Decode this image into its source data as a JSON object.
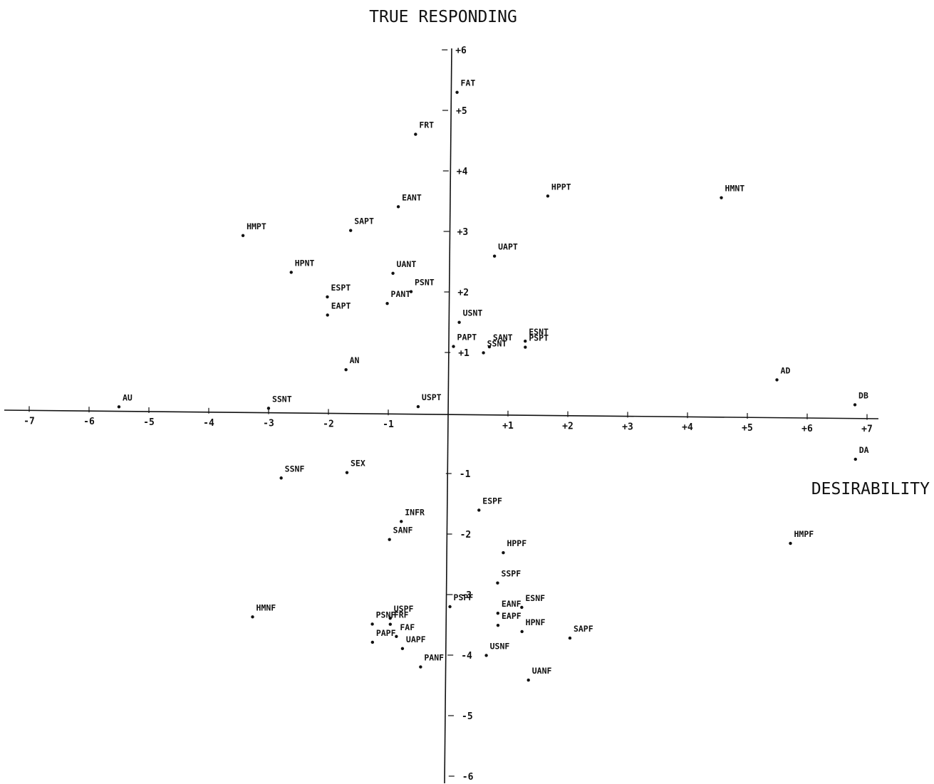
{
  "chart_data": {
    "type": "scatter",
    "title": "TRUE RESPONDING",
    "xlabel": "DESIRABILITY",
    "ylabel": "TRUE RESPONDING",
    "xlim": [
      -7.3,
      7.2
    ],
    "ylim": [
      -6.3,
      6.1
    ],
    "grid": false,
    "legend": "none",
    "x_ticks": [
      {
        "value": -7,
        "label": "-7"
      },
      {
        "value": -6,
        "label": "-6"
      },
      {
        "value": -5,
        "label": "-5"
      },
      {
        "value": -4,
        "label": "-4"
      },
      {
        "value": -3,
        "label": "-3"
      },
      {
        "value": -2,
        "label": "-2"
      },
      {
        "value": -1,
        "label": "-1"
      },
      {
        "value": 1,
        "label": "+1"
      },
      {
        "value": 2,
        "label": "+2"
      },
      {
        "value": 3,
        "label": "+3"
      },
      {
        "value": 4,
        "label": "+4"
      },
      {
        "value": 5,
        "label": "+5"
      },
      {
        "value": 6,
        "label": "+6"
      },
      {
        "value": 7,
        "label": "+7"
      }
    ],
    "y_ticks": [
      {
        "value": 6,
        "label": "+6"
      },
      {
        "value": 5,
        "label": "+5"
      },
      {
        "value": 4,
        "label": "+4"
      },
      {
        "value": 3,
        "label": "+3"
      },
      {
        "value": 2,
        "label": "+2"
      },
      {
        "value": 1,
        "label": "+1"
      },
      {
        "value": -1,
        "label": "-1"
      },
      {
        "value": -2,
        "label": "-2"
      },
      {
        "value": -3,
        "label": "-3"
      },
      {
        "value": -4,
        "label": "-4"
      },
      {
        "value": -5,
        "label": "-5"
      },
      {
        "value": -6,
        "label": "-6"
      }
    ],
    "points": [
      {
        "label": "FAT",
        "x": 0.2,
        "y": 5.3
      },
      {
        "label": "FRT",
        "x": -0.5,
        "y": 4.6
      },
      {
        "label": "HPPT",
        "x": 1.7,
        "y": 3.6
      },
      {
        "label": "HMNT",
        "x": 4.6,
        "y": 3.6
      },
      {
        "label": "EANT",
        "x": -0.8,
        "y": 3.4
      },
      {
        "label": "SAPT",
        "x": -1.6,
        "y": 3.0
      },
      {
        "label": "HMPT",
        "x": -3.4,
        "y": 2.9
      },
      {
        "label": "UAPT",
        "x": 0.8,
        "y": 2.6
      },
      {
        "label": "HPNT",
        "x": -2.6,
        "y": 2.3
      },
      {
        "label": "UANT",
        "x": -0.9,
        "y": 2.3
      },
      {
        "label": "PSNT",
        "x": -0.6,
        "y": 2.0
      },
      {
        "label": "ESPT",
        "x": -2.0,
        "y": 1.9
      },
      {
        "label": "PANT",
        "x": -1.0,
        "y": 1.8
      },
      {
        "label": "EAPT",
        "x": -2.0,
        "y": 1.6
      },
      {
        "label": "USNT",
        "x": 0.2,
        "y": 1.5
      },
      {
        "label": "ESNT",
        "x": 1.3,
        "y": 1.2
      },
      {
        "label": "PAPT",
        "x": 0.1,
        "y": 1.1
      },
      {
        "label": "SANT",
        "x": 0.7,
        "y": 1.1
      },
      {
        "label": "PSPT",
        "x": 1.3,
        "y": 1.1
      },
      {
        "label": "SSNT",
        "x": 0.6,
        "y": 1.0
      },
      {
        "label": "AN",
        "x": -1.7,
        "y": 0.7
      },
      {
        "label": "AD",
        "x": 5.5,
        "y": 0.6
      },
      {
        "label": "DB",
        "x": 6.8,
        "y": 0.2
      },
      {
        "label": "USPT",
        "x": -0.5,
        "y": 0.1
      },
      {
        "label": "AU",
        "x": -5.5,
        "y": 0.05
      },
      {
        "label": "SSNT",
        "x": -3.0,
        "y": 0.05
      },
      {
        "label": "DA",
        "x": 6.8,
        "y": -0.7
      },
      {
        "label": "SEX",
        "x": -1.7,
        "y": -1.0
      },
      {
        "label": "SSNF",
        "x": -2.8,
        "y": -1.1
      },
      {
        "label": "ESPF",
        "x": 0.5,
        "y": -1.6
      },
      {
        "label": "INFR",
        "x": -0.8,
        "y": -1.8
      },
      {
        "label": "SANF",
        "x": -1.0,
        "y": -2.1
      },
      {
        "label": "HMPF",
        "x": 5.7,
        "y": -2.1
      },
      {
        "label": "HPPF",
        "x": 0.9,
        "y": -2.3
      },
      {
        "label": "SSPF",
        "x": 0.8,
        "y": -2.8
      },
      {
        "label": "PSPF",
        "x": 0.0,
        "y": -3.2
      },
      {
        "label": "ESNF",
        "x": 1.2,
        "y": -3.2
      },
      {
        "label": "EANF",
        "x": 0.8,
        "y": -3.3
      },
      {
        "label": "HMNF",
        "x": -3.3,
        "y": -3.4
      },
      {
        "label": "USPF",
        "x": -1.0,
        "y": -3.4
      },
      {
        "label": "PSNF",
        "x": -1.3,
        "y": -3.5
      },
      {
        "label": "FRF",
        "x": -1.0,
        "y": -3.5
      },
      {
        "label": "EAPF",
        "x": 0.8,
        "y": -3.5
      },
      {
        "label": "HPNF",
        "x": 1.2,
        "y": -3.6
      },
      {
        "label": "FAF",
        "x": -0.9,
        "y": -3.7
      },
      {
        "label": "SAPF",
        "x": 2.0,
        "y": -3.7
      },
      {
        "label": "PAPF",
        "x": -1.3,
        "y": -3.8
      },
      {
        "label": "UAPF",
        "x": -0.8,
        "y": -3.9
      },
      {
        "label": "USNF",
        "x": 0.6,
        "y": -4.0
      },
      {
        "label": "PANF",
        "x": -0.5,
        "y": -4.2
      },
      {
        "label": "UANF",
        "x": 1.3,
        "y": -4.4
      }
    ]
  }
}
